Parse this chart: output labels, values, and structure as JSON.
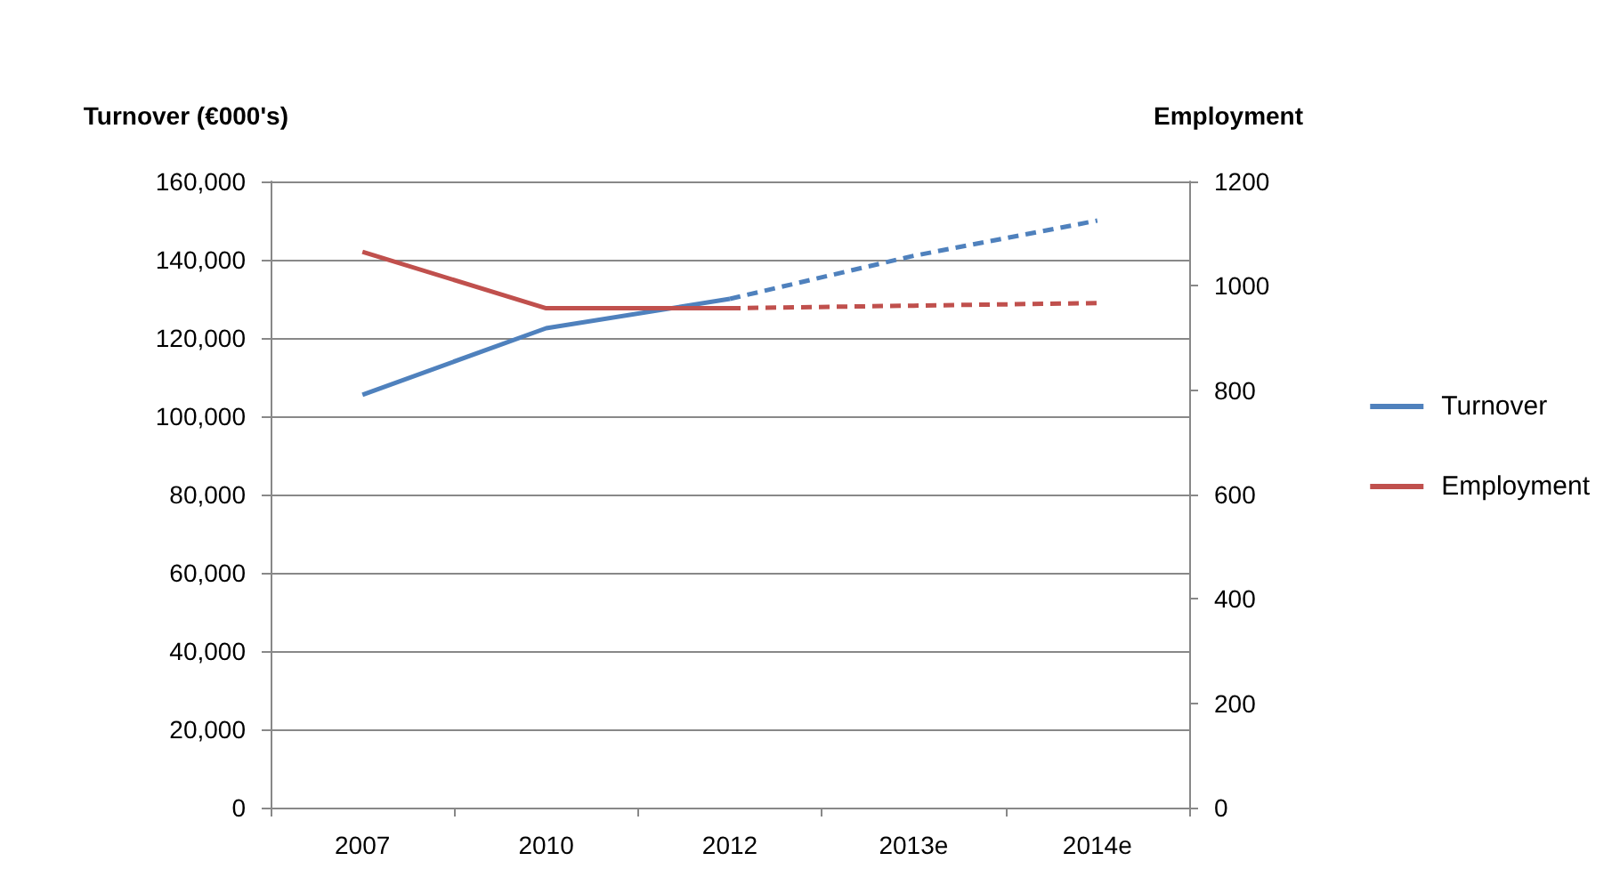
{
  "chart_data": {
    "type": "line",
    "ylabel": "Turnover (€000's)",
    "y2label": "Employment",
    "categories": [
      "2007",
      "2010",
      "2012",
      "2013e",
      "2014e"
    ],
    "series": [
      {
        "name": "Turnover",
        "color": "#4f81bd",
        "values": [
          105500,
          122500,
          130000,
          null,
          null
        ],
        "line_style": "solid"
      },
      {
        "color": "#4f81bd",
        "values": [
          null,
          null,
          130000,
          141000,
          150000
        ],
        "line_style": "dashed"
      },
      {
        "name": "Employment",
        "color": "#c0504d",
        "values": [
          1065,
          957,
          957,
          null,
          null
        ],
        "line_style": "solid",
        "axis": "y2"
      },
      {
        "color": "#c0504d",
        "values": [
          null,
          null,
          957,
          962,
          967
        ],
        "line_style": "dashed",
        "axis": "y2"
      }
    ],
    "ylim": [
      0,
      160000
    ],
    "yticks": [
      {
        "value": 0,
        "label": "0"
      },
      {
        "value": 20000,
        "label": "20,000"
      },
      {
        "value": 40000,
        "label": "40,000"
      },
      {
        "value": 60000,
        "label": "60,000"
      },
      {
        "value": 80000,
        "label": "80,000"
      },
      {
        "value": 100000,
        "label": "100,000"
      },
      {
        "value": 120000,
        "label": "120,000"
      },
      {
        "value": 140000,
        "label": "140,000"
      },
      {
        "value": 160000,
        "label": "160,000"
      }
    ],
    "y2lim": [
      0,
      1200
    ],
    "y2ticks": [
      0,
      200,
      400,
      600,
      800,
      1000,
      1200
    ],
    "grid": "y",
    "legend": "right"
  }
}
